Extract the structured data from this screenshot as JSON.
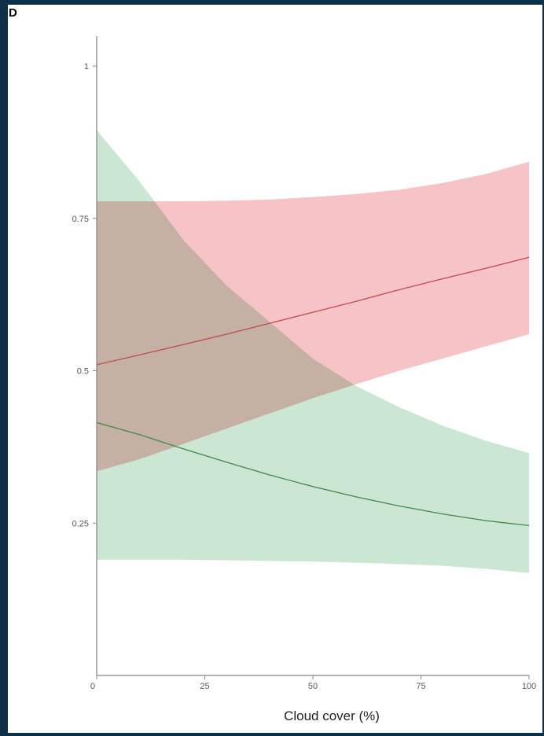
{
  "panel_label": "D",
  "colors": {
    "green_band": "#bfe1c8",
    "green_line": "#3d8a4a",
    "red_band": "#f4b7bb",
    "red_line": "#c44848",
    "axis": "#888888"
  },
  "chart_data": {
    "type": "line",
    "xlabel": "Cloud cover (%)",
    "ylabel": "",
    "xlim": [
      0,
      100
    ],
    "ylim": [
      0,
      1.05
    ],
    "x_ticks": [
      {
        "value": 0,
        "label": "0"
      },
      {
        "value": 25,
        "label": "25"
      },
      {
        "value": 50,
        "label": "50"
      },
      {
        "value": 75,
        "label": "75"
      },
      {
        "value": 100,
        "label": "100"
      }
    ],
    "y_ticks": [
      {
        "value": 0.25,
        "label": "0.25"
      },
      {
        "value": 0.5,
        "label": "0.5"
      },
      {
        "value": 0.75,
        "label": "0.75"
      },
      {
        "value": 1,
        "label": "1"
      }
    ],
    "grid": false,
    "series": [
      {
        "color_key": "green",
        "x": [
          0,
          10,
          20,
          30,
          40,
          50,
          60,
          70,
          80,
          90,
          100
        ],
        "y": [
          0.415,
          0.395,
          0.372,
          0.35,
          0.329,
          0.31,
          0.293,
          0.278,
          0.265,
          0.254,
          0.246
        ],
        "lower": [
          0.19,
          0.19,
          0.19,
          0.189,
          0.188,
          0.187,
          0.185,
          0.183,
          0.18,
          0.175,
          0.168
        ],
        "upper": [
          0.895,
          0.81,
          0.715,
          0.64,
          0.58,
          0.52,
          0.475,
          0.44,
          0.41,
          0.385,
          0.365
        ]
      },
      {
        "color_key": "red",
        "x": [
          0,
          10,
          20,
          30,
          40,
          50,
          60,
          70,
          80,
          90,
          100
        ],
        "y": [
          0.51,
          0.526,
          0.543,
          0.56,
          0.578,
          0.596,
          0.614,
          0.633,
          0.651,
          0.668,
          0.686
        ],
        "lower": [
          0.335,
          0.355,
          0.38,
          0.405,
          0.43,
          0.455,
          0.478,
          0.5,
          0.52,
          0.54,
          0.56
        ],
        "upper": [
          0.778,
          0.778,
          0.778,
          0.779,
          0.781,
          0.785,
          0.79,
          0.797,
          0.808,
          0.823,
          0.843
        ]
      }
    ]
  }
}
